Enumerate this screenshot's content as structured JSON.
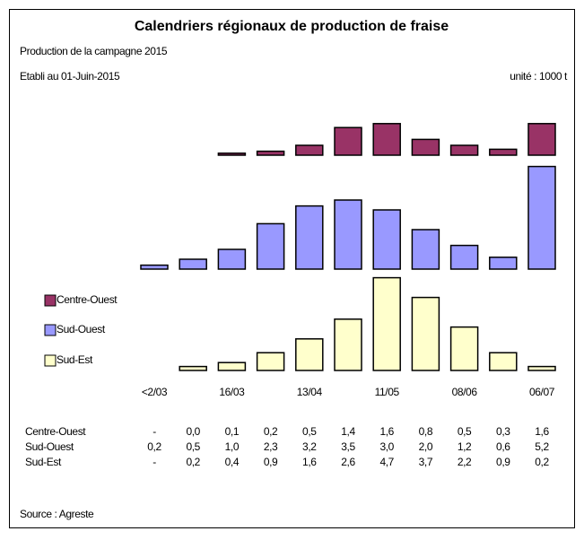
{
  "chart_data": {
    "type": "bar",
    "title": "Calendriers régionaux de production de fraise",
    "subtitle": "Production de la campagne 2015",
    "date_note": "Etabli au 01-Juin-2015",
    "unit_note": "unité : 1000 t",
    "source": "Source : Agreste",
    "categories": [
      "<2/03",
      null,
      "16/03",
      null,
      "13/04",
      null,
      "11/05",
      null,
      "08/06",
      null,
      "06/07"
    ],
    "series": [
      {
        "name": "Centre-Ouest",
        "color": "#993366",
        "values": [
          null,
          0.0,
          0.1,
          0.2,
          0.5,
          1.4,
          1.6,
          0.8,
          0.5,
          0.3,
          1.6
        ],
        "value_labels": [
          "-",
          "0,0",
          "0,1",
          "0,2",
          "0,5",
          "1,4",
          "1,6",
          "0,8",
          "0,5",
          "0,3",
          "1,6"
        ]
      },
      {
        "name": "Sud-Ouest",
        "color": "#9999ff",
        "values": [
          0.2,
          0.5,
          1.0,
          2.3,
          3.2,
          3.5,
          3.0,
          2.0,
          1.2,
          0.6,
          5.2
        ],
        "value_labels": [
          "0,2",
          "0,5",
          "1,0",
          "2,3",
          "3,2",
          "3,5",
          "3,0",
          "2,0",
          "1,2",
          "0,6",
          "5,2"
        ]
      },
      {
        "name": "Sud-Est",
        "color": "#ffffcc",
        "values": [
          null,
          0.2,
          0.4,
          0.9,
          1.6,
          2.6,
          4.7,
          3.7,
          2.2,
          0.9,
          0.2
        ],
        "value_labels": [
          "-",
          "0,2",
          "0,4",
          "0,9",
          "1,6",
          "2,6",
          "4,7",
          "3,7",
          "2,2",
          "0,9",
          "0,2"
        ]
      }
    ]
  }
}
